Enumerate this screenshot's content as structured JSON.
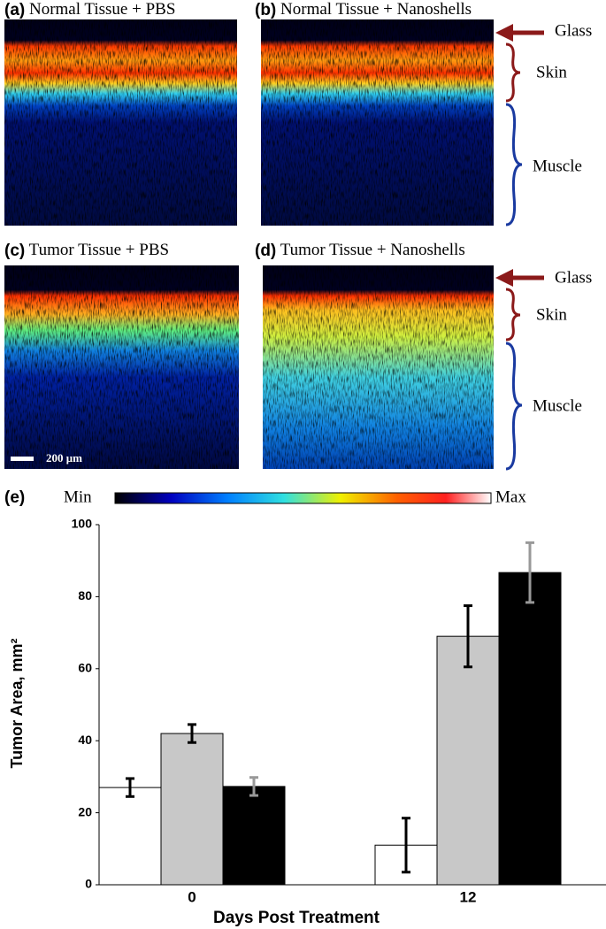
{
  "panels": [
    {
      "label": "(a)",
      "title": "Normal Tissue + PBS"
    },
    {
      "label": "(b)",
      "title": "Normal Tissue + Nanoshells"
    },
    {
      "label": "(c)",
      "title": "Tumor Tissue + PBS"
    },
    {
      "label": "(d)",
      "title": "Tumor Tissue + Nanoshells"
    }
  ],
  "layers_top": {
    "glass": "Glass",
    "skin": "Skin",
    "muscle": "Muscle"
  },
  "layers_bottom": {
    "glass": "Glass",
    "skin": "Skin",
    "muscle": "Muscle"
  },
  "scale_bar": "200 μm",
  "colorbar": {
    "min": "Min",
    "max": "Max"
  },
  "chart_label": "(e)",
  "chart_data": {
    "type": "bar",
    "ylabel": "Tumor Area, mm²",
    "xlabel": "Days Post Treatment",
    "categories": [
      "0",
      "12"
    ],
    "series": [
      {
        "color": "#ffffff",
        "error_color": "#000000",
        "values": [
          27,
          11
        ],
        "errors": [
          2.5,
          7.5
        ]
      },
      {
        "color": "#c8c8c8",
        "error_color": "#000000",
        "values": [
          42,
          69
        ],
        "errors": [
          2.5,
          8.5
        ]
      },
      {
        "color": "#000000",
        "error_color": "#999999",
        "values": [
          27.3,
          86.7
        ],
        "errors": [
          2.5,
          8.3
        ]
      }
    ],
    "ylim": [
      0,
      100
    ],
    "yticks": [
      0,
      20,
      40,
      60,
      80,
      100
    ]
  }
}
